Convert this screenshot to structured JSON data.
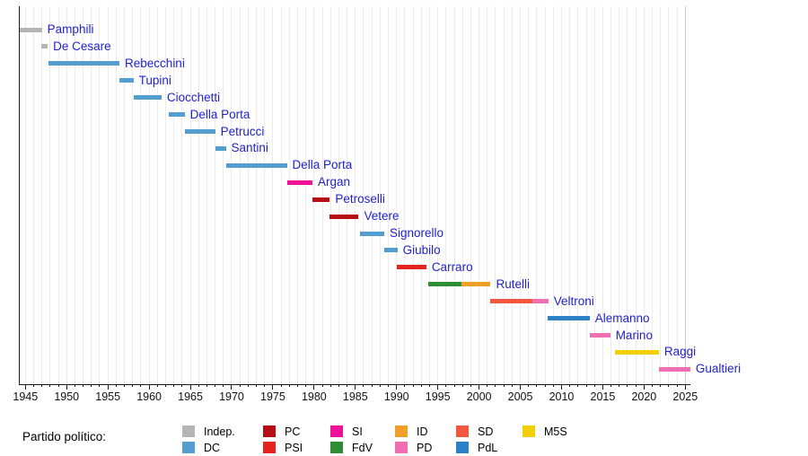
{
  "chart_data": {
    "type": "bar",
    "variant": "horizontal-gantt-timeline",
    "title": "",
    "xlabel": "",
    "ylabel": "",
    "xlim": [
      1944.2,
      2025.6
    ],
    "x_tick_labels": [
      "1945",
      "1950",
      "1955",
      "1960",
      "1965",
      "1970",
      "1975",
      "1980",
      "1985",
      "1990",
      "1995",
      "2000",
      "2005",
      "2010",
      "2015",
      "2020",
      "2025"
    ],
    "x_major_tick_step": 5,
    "x_minor_tick_step": 1,
    "grid": "vertical line per year",
    "legend_position": "bottom",
    "colors": {
      "axis": "#1a1a1a",
      "grid": "#ebebeb",
      "grid_last": "#c9c9c9",
      "name_label": "#2222cc",
      "tick_label": "#111111"
    },
    "parties": {
      "Indep.": "#b4b4b4",
      "DC": "#549ecf",
      "PC": "#b90d15",
      "PSI": "#e6231e",
      "SI": "#f0119a",
      "FdV": "#2f8e33",
      "ID": "#f0a028",
      "PD": "#f06fb2",
      "SD": "#f2573f",
      "PdL": "#2c82c9",
      "M5S": "#f2cf00"
    },
    "mayors": [
      {
        "name": "Pamphili",
        "segments": [
          {
            "party": "Indep.",
            "start": 1944.3,
            "end": 1947.0
          }
        ]
      },
      {
        "name": "De Cesare",
        "segments": [
          {
            "party": "Indep.",
            "start": 1946.9,
            "end": 1947.7
          }
        ]
      },
      {
        "name": "Rebecchini",
        "segments": [
          {
            "party": "DC",
            "start": 1947.8,
            "end": 1956.4
          }
        ]
      },
      {
        "name": "Tupini",
        "segments": [
          {
            "party": "DC",
            "start": 1956.4,
            "end": 1958.1
          }
        ]
      },
      {
        "name": "Ciocchetti",
        "segments": [
          {
            "party": "DC",
            "start": 1958.1,
            "end": 1961.5
          }
        ]
      },
      {
        "name": "Della Porta",
        "segments": [
          {
            "party": "DC",
            "start": 1962.4,
            "end": 1964.3
          }
        ]
      },
      {
        "name": "Petrucci",
        "segments": [
          {
            "party": "DC",
            "start": 1964.3,
            "end": 1968.0
          }
        ]
      },
      {
        "name": "Santini",
        "segments": [
          {
            "party": "DC",
            "start": 1968.0,
            "end": 1969.3
          }
        ]
      },
      {
        "name": "Della Porta",
        "segments": [
          {
            "party": "DC",
            "start": 1969.3,
            "end": 1976.7
          }
        ]
      },
      {
        "name": "Argan",
        "segments": [
          {
            "party": "SI",
            "start": 1976.7,
            "end": 1979.8
          }
        ]
      },
      {
        "name": "Petroselli",
        "segments": [
          {
            "party": "PC",
            "start": 1979.8,
            "end": 1981.9
          }
        ]
      },
      {
        "name": "Vetere",
        "segments": [
          {
            "party": "PC",
            "start": 1981.9,
            "end": 1985.4
          }
        ]
      },
      {
        "name": "Signorello",
        "segments": [
          {
            "party": "DC",
            "start": 1985.6,
            "end": 1988.5
          }
        ]
      },
      {
        "name": "Giubilo",
        "segments": [
          {
            "party": "DC",
            "start": 1988.5,
            "end": 1990.1
          }
        ]
      },
      {
        "name": "Carraro",
        "segments": [
          {
            "party": "PSI",
            "start": 1990.0,
            "end": 1993.6
          }
        ]
      },
      {
        "name": "Rutelli",
        "segments": [
          {
            "party": "FdV",
            "start": 1993.8,
            "end": 1997.9
          },
          {
            "party": "ID",
            "start": 1997.9,
            "end": 2001.4
          }
        ]
      },
      {
        "name": "Veltroni",
        "segments": [
          {
            "party": "SD",
            "start": 2001.4,
            "end": 2006.5
          },
          {
            "party": "PD",
            "start": 2006.5,
            "end": 2008.4
          }
        ]
      },
      {
        "name": "Alemanno",
        "segments": [
          {
            "party": "PdL",
            "start": 2008.3,
            "end": 2013.4
          }
        ]
      },
      {
        "name": "Marino",
        "segments": [
          {
            "party": "PD",
            "start": 2013.4,
            "end": 2015.9
          }
        ]
      },
      {
        "name": "Raggi",
        "segments": [
          {
            "party": "M5S",
            "start": 2016.5,
            "end": 2021.8
          }
        ]
      },
      {
        "name": "Gualtieri",
        "segments": [
          {
            "party": "PD",
            "start": 2021.8,
            "end": 2025.6
          }
        ]
      }
    ]
  },
  "legend": {
    "title": "Partido político:",
    "columns": [
      [
        "Indep.",
        "DC"
      ],
      [
        "PC",
        "PSI"
      ],
      [
        "SI",
        "FdV"
      ],
      [
        "ID",
        "PD"
      ],
      [
        "SD",
        "PdL"
      ],
      [
        "M5S"
      ]
    ]
  }
}
